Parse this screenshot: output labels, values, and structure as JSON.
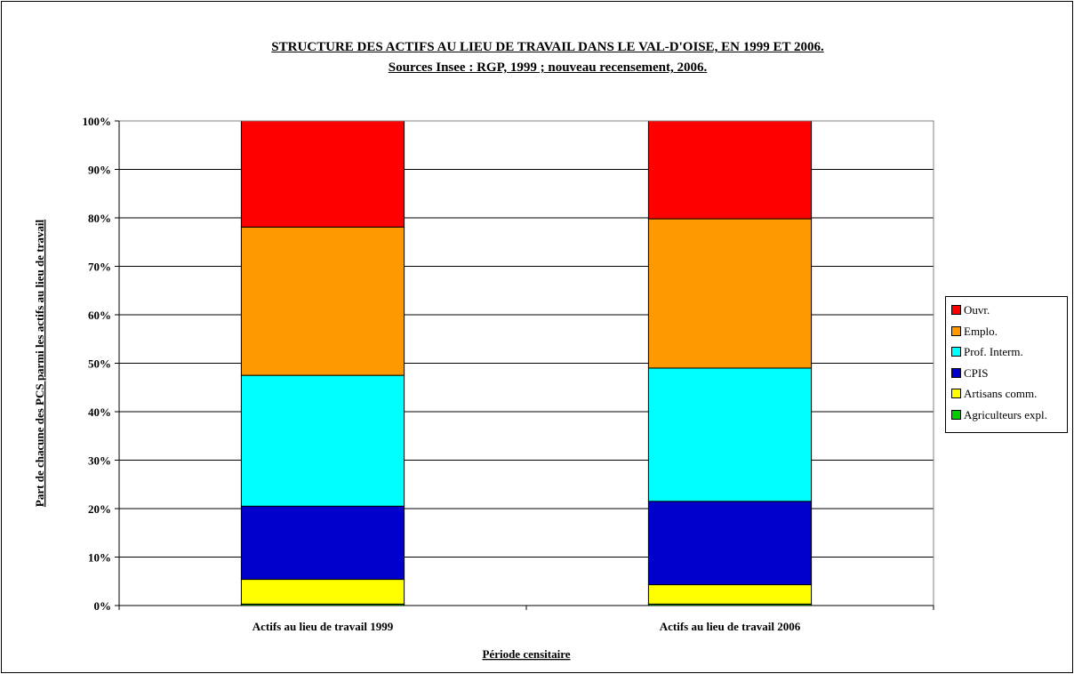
{
  "chart_data": {
    "type": "bar",
    "stacked": "percent",
    "title": "STRUCTURE DES ACTIFS AU LIEU DE TRAVAIL DANS LE VAL-D'OISE, EN 1999 ET 2006.",
    "subtitle": "Sources Insee : RGP, 1999 ; nouveau recensement, 2006.",
    "xlabel": "Période censitaire",
    "ylabel": "Part de chacune des PCS parmi les actifs au lieu de travail",
    "ylim": [
      0,
      100
    ],
    "yticks": [
      "0%",
      "10%",
      "20%",
      "30%",
      "40%",
      "50%",
      "60%",
      "70%",
      "80%",
      "90%",
      "100%"
    ],
    "grid": true,
    "legend_position": "right",
    "categories": [
      "Actifs au lieu de travail 1999",
      "Actifs au lieu de travail 2006"
    ],
    "series": [
      {
        "name": "Agriculteurs expl.",
        "color": "#00cc00",
        "values": [
          0.3,
          0.3
        ]
      },
      {
        "name": "Artisans comm.",
        "color": "#ffff00",
        "values": [
          5.1,
          4.0
        ]
      },
      {
        "name": "CPIS",
        "color": "#0000cc",
        "values": [
          15.1,
          17.2
        ]
      },
      {
        "name": "Prof. Interm.",
        "color": "#00ffff",
        "values": [
          27.0,
          27.5
        ]
      },
      {
        "name": "Emplo.",
        "color": "#ff9900",
        "values": [
          30.6,
          30.8
        ]
      },
      {
        "name": "Ouvr.",
        "color": "#ff0000",
        "values": [
          21.9,
          20.2
        ]
      }
    ]
  }
}
